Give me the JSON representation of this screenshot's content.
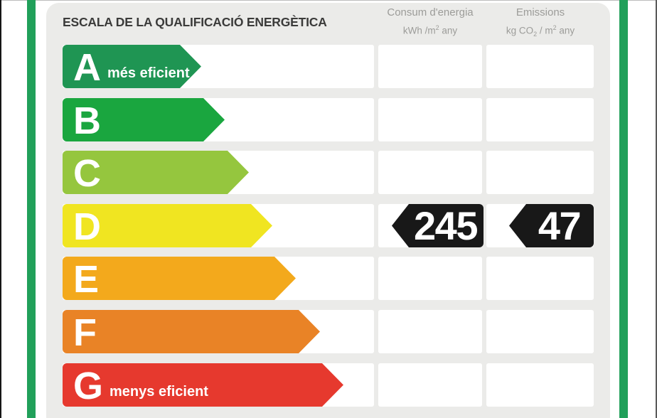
{
  "header": {
    "title": "ESCALA DE LA QUALIFICACIÓ ENERGÈTICA",
    "col1": {
      "name": "Consum d'energia",
      "u1": "kWh /m",
      "sup": "2",
      "u2": " any"
    },
    "col2": {
      "name": "Emissions",
      "u1": "kg CO",
      "sub": "2",
      "u2": " / m",
      "sup": "2",
      "u3": " any"
    }
  },
  "scale": {
    "rows": [
      {
        "letter": "A",
        "note": "més eficient",
        "color": "#1f9553"
      },
      {
        "letter": "B",
        "note": "",
        "color": "#1aa63f"
      },
      {
        "letter": "C",
        "note": "",
        "color": "#95c63e"
      },
      {
        "letter": "D",
        "note": "",
        "color": "#f0e521"
      },
      {
        "letter": "E",
        "note": "",
        "color": "#f3a91c"
      },
      {
        "letter": "F",
        "note": "",
        "color": "#e98326"
      },
      {
        "letter": "G",
        "note": "menys eficient",
        "color": "#e6392e"
      }
    ]
  },
  "values": {
    "grade": "D",
    "consum": "245",
    "emissions": "47",
    "badge_color": "#181818"
  },
  "colors": {
    "frame_green": "#21a05a",
    "panel_bg": "#ebebe9",
    "title_text": "#3b3b3a",
    "header_text": "#9c9c99"
  },
  "chart_data": {
    "type": "bar",
    "title": "ESCALA DE LA QUALIFICACIÓ ENERGÈTICA",
    "categories": [
      "A",
      "B",
      "C",
      "D",
      "E",
      "F",
      "G"
    ],
    "category_notes": {
      "A": "més eficient",
      "G": "menys eficient"
    },
    "bar_colors": [
      "#1f9553",
      "#1aa63f",
      "#95c63e",
      "#f0e521",
      "#f3a91c",
      "#e98326",
      "#e6392e"
    ],
    "relative_bar_lengths": [
      195,
      228,
      262,
      295,
      328,
      362,
      395
    ],
    "columns": [
      "Consum d'energia kWh/m2 any",
      "Emissions kg CO2/m2 any"
    ],
    "rating": "D",
    "series": [
      {
        "name": "Consum d'energia (kWh/m2 any)",
        "values": [
          null,
          null,
          null,
          245,
          null,
          null,
          null
        ]
      },
      {
        "name": "Emissions (kg CO2/m2 any)",
        "values": [
          null,
          null,
          null,
          47,
          null,
          null,
          null
        ]
      }
    ],
    "legend_position": "none",
    "grid": false
  }
}
